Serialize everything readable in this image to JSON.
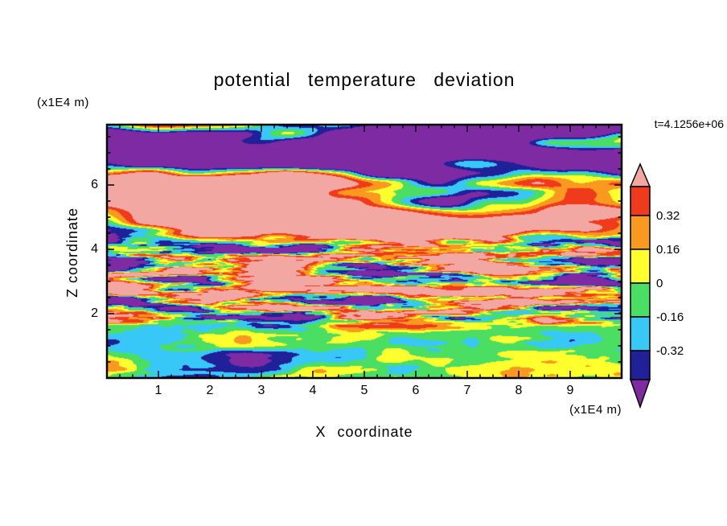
{
  "title": "potential temperature deviation",
  "time_label": "t=4.1256e+06",
  "axes": {
    "x_label": "X coordinate",
    "x_unit": "(x1E4 m)",
    "z_label": "Z coordinate",
    "z_unit": "(x1E4 m)"
  },
  "chart_data": {
    "type": "heatmap",
    "title": "potential temperature deviation",
    "xlabel": "X coordinate",
    "ylabel": "Z coordinate",
    "x_unit": "(x1E4 m)",
    "z_unit": "(x1E4 m)",
    "time": "t=4.1256e+06",
    "xlim": [
      0,
      10
    ],
    "zlim": [
      0,
      7.875
    ],
    "x_ticks": [
      1,
      2,
      3,
      4,
      5,
      6,
      7,
      8,
      9
    ],
    "z_ticks": [
      2,
      4,
      6
    ],
    "levels": [
      -0.48,
      -0.32,
      -0.16,
      0,
      0.16,
      0.32,
      0.48
    ],
    "level_colors": [
      "#7E2AA3",
      "#202099",
      "#38C8F8",
      "#4ADE63",
      "#FFFF2E",
      "#F9991F",
      "#EF3B1C",
      "#F2A7A2"
    ],
    "colorbar_labels": [
      "0.32",
      "0.16",
      "0",
      "-0.16",
      "-0.32"
    ],
    "field_description": "filled contour field: saturated pink/purple stratified wave layers aloft, fine horizontally-stretched filaments at mid-levels, green/cyan boundary layer with warm convective plumes and dark-blue streaks near the surface"
  }
}
